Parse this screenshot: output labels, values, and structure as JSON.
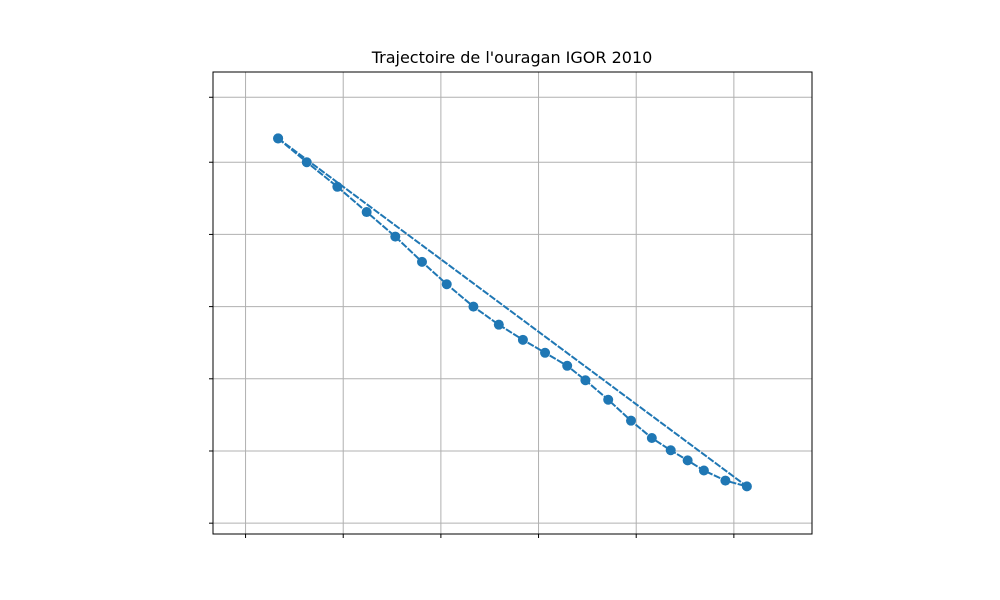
{
  "chart_data": {
    "type": "line",
    "title": "Trajectoire de l'ouragan IGOR 2010",
    "xlabel": "",
    "ylabel": "",
    "x_tick_labels_shown": false,
    "y_tick_labels_shown": false,
    "grid": true,
    "xlim": [
      0,
      920
    ],
    "ylim": [
      0,
      640
    ],
    "x_grid_values": [
      50,
      200,
      350,
      500,
      650,
      800
    ],
    "y_grid_values": [
      15,
      115,
      215,
      315,
      415,
      515,
      605
    ],
    "series": [
      {
        "color": "#1f77b4",
        "marker": "circle",
        "points": [
          {
            "x": 100,
            "y": 548
          },
          {
            "x": 144,
            "y": 515
          },
          {
            "x": 191,
            "y": 481
          },
          {
            "x": 236,
            "y": 446
          },
          {
            "x": 280,
            "y": 412
          },
          {
            "x": 321,
            "y": 377
          },
          {
            "x": 359,
            "y": 346
          },
          {
            "x": 400,
            "y": 315
          },
          {
            "x": 439,
            "y": 290
          },
          {
            "x": 476,
            "y": 269
          },
          {
            "x": 510,
            "y": 251
          },
          {
            "x": 544,
            "y": 233
          },
          {
            "x": 572,
            "y": 213
          },
          {
            "x": 607,
            "y": 186
          },
          {
            "x": 642,
            "y": 157
          },
          {
            "x": 674,
            "y": 133
          },
          {
            "x": 703,
            "y": 116
          },
          {
            "x": 729,
            "y": 102
          },
          {
            "x": 754,
            "y": 88
          },
          {
            "x": 787,
            "y": 74
          },
          {
            "x": 820,
            "y": 66
          },
          {
            "x": 100,
            "y": 548
          }
        ]
      }
    ]
  }
}
